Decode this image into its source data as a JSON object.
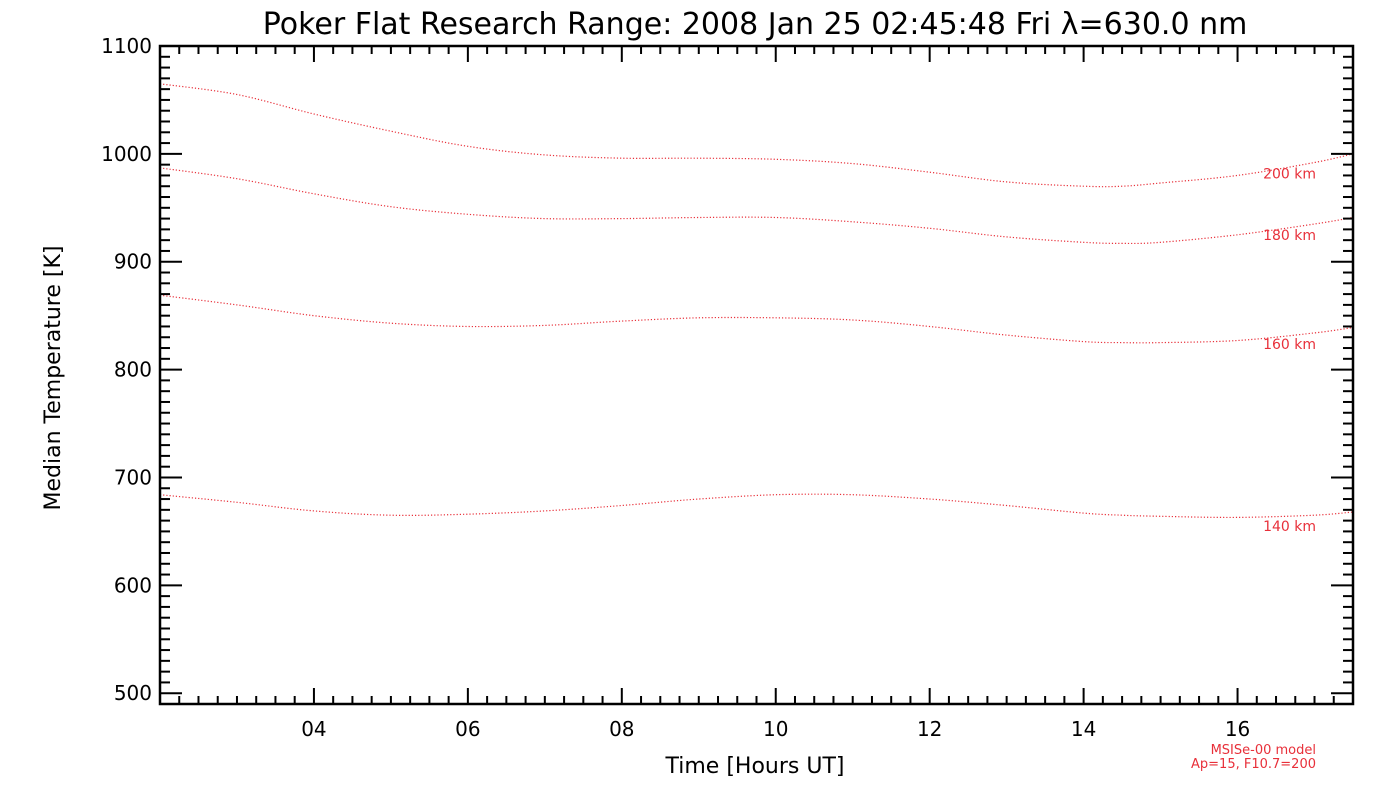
{
  "colors": {
    "background": "#ffffff",
    "axis": "#000000",
    "series": "#e8303a"
  },
  "chart_data": {
    "type": "line",
    "title": "Poker Flat Research Range: 2008 Jan 25 02:45:48 Fri λ=630.0 nm",
    "xlabel": "Time [Hours UT]",
    "ylabel": "Median Temperature [K]",
    "xlim": [
      2.0,
      17.5
    ],
    "ylim": [
      490,
      1100
    ],
    "x_ticks": [
      4,
      6,
      8,
      10,
      12,
      14,
      16
    ],
    "x_tick_labels": [
      "04",
      "06",
      "08",
      "10",
      "12",
      "14",
      "16"
    ],
    "y_ticks": [
      500,
      600,
      700,
      800,
      900,
      1000,
      1100
    ],
    "y_tick_labels": [
      "500",
      "600",
      "700",
      "800",
      "900",
      "1000",
      "1100"
    ],
    "grid": false,
    "line_style": "dotted",
    "series": [
      {
        "name": "200 km",
        "x": [
          2.0,
          3.0,
          4.0,
          5.0,
          6.0,
          7.0,
          8.0,
          9.0,
          10.0,
          11.0,
          12.0,
          13.0,
          14.0,
          14.5,
          15.0,
          16.0,
          17.0,
          17.5
        ],
        "values": [
          1065,
          1055,
          1037,
          1021,
          1007,
          999,
          996,
          996,
          995,
          991,
          983,
          974,
          970,
          970,
          973,
          980,
          992,
          1000
        ]
      },
      {
        "name": "180 km",
        "x": [
          2.0,
          3.0,
          4.0,
          5.0,
          6.0,
          7.0,
          8.0,
          9.0,
          10.0,
          11.0,
          12.0,
          13.0,
          14.0,
          14.5,
          15.0,
          16.0,
          17.0,
          17.5
        ],
        "values": [
          987,
          977,
          963,
          951,
          944,
          940,
          940,
          941,
          941,
          937,
          931,
          923,
          918,
          917,
          918,
          925,
          935,
          941
        ]
      },
      {
        "name": "160 km",
        "x": [
          2.0,
          3.0,
          4.0,
          5.0,
          6.0,
          7.0,
          8.0,
          9.0,
          10.0,
          11.0,
          12.0,
          13.0,
          14.0,
          14.5,
          15.0,
          16.0,
          17.0,
          17.5
        ],
        "values": [
          869,
          860,
          850,
          843,
          840,
          841,
          845,
          848,
          848,
          846,
          840,
          832,
          826,
          825,
          825,
          827,
          834,
          839
        ]
      },
      {
        "name": "140 km",
        "x": [
          2.0,
          3.0,
          4.0,
          5.0,
          6.0,
          7.0,
          8.0,
          9.0,
          10.0,
          11.0,
          12.0,
          13.0,
          14.0,
          14.5,
          15.0,
          16.0,
          17.0,
          17.5
        ],
        "values": [
          684,
          677,
          669,
          665,
          666,
          669,
          674,
          680,
          684,
          684,
          680,
          674,
          667,
          665,
          664,
          663,
          665,
          668
        ]
      }
    ],
    "annotations": [
      "MSISe-00 model",
      "Ap=15, F10.7=200"
    ]
  }
}
